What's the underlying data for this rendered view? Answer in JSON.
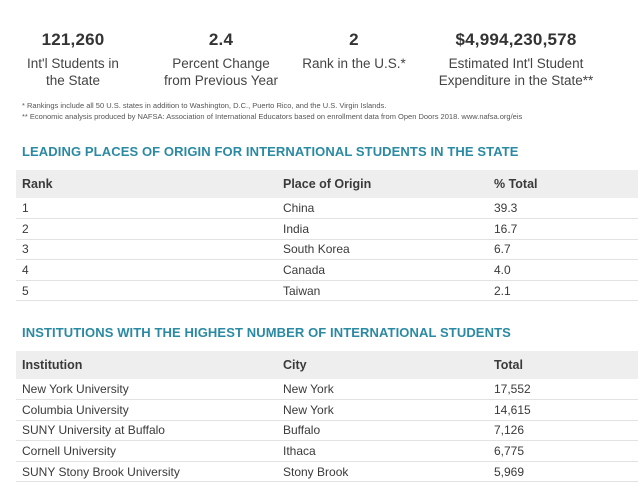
{
  "stats": [
    {
      "value": "121,260",
      "label_line1": "Int'l Students in",
      "label_line2": "the State"
    },
    {
      "value": "2.4",
      "label_line1": "Percent Change",
      "label_line2": "from Previous Year"
    },
    {
      "value": "2",
      "label_line1": "Rank in the U.S.*",
      "label_line2": ""
    },
    {
      "value": "$4,994,230,578",
      "label_line1": "Estimated Int'l Student",
      "label_line2": "Expenditure in the State**"
    }
  ],
  "footnotes": [
    "* Rankings include all 50 U.S. states in addition to Washington, D.C., Puerto Rico, and the U.S. Virgin Islands.",
    "** Economic analysis produced by NAFSA: Association of International Educators based on enrollment data from Open Doors 2018. www.nafsa.org/eis"
  ],
  "origins": {
    "title": "LEADING PLACES OF ORIGIN FOR INTERNATIONAL STUDENTS IN THE STATE",
    "headers": [
      "Rank",
      "Place of Origin",
      "% Total"
    ],
    "rows": [
      [
        "1",
        "China",
        "39.3"
      ],
      [
        "2",
        "India",
        "16.7"
      ],
      [
        "3",
        "South Korea",
        "6.7"
      ],
      [
        "4",
        "Canada",
        "4.0"
      ],
      [
        "5",
        "Taiwan",
        "2.1"
      ]
    ]
  },
  "institutions": {
    "title": "INSTITUTIONS WITH THE HIGHEST NUMBER OF INTERNATIONAL STUDENTS",
    "headers": [
      "Institution",
      "City",
      "Total"
    ],
    "rows": [
      [
        "New York University",
        "New York",
        "17,552"
      ],
      [
        "Columbia University",
        "New York",
        "14,615"
      ],
      [
        "SUNY University at Buffalo",
        "Buffalo",
        "7,126"
      ],
      [
        "Cornell University",
        "Ithaca",
        "6,775"
      ],
      [
        "SUNY Stony Brook University",
        "Stony Brook",
        "5,969"
      ]
    ]
  },
  "colors": {
    "accent": "#2a8aa4",
    "header_bg": "#eeeeee"
  }
}
